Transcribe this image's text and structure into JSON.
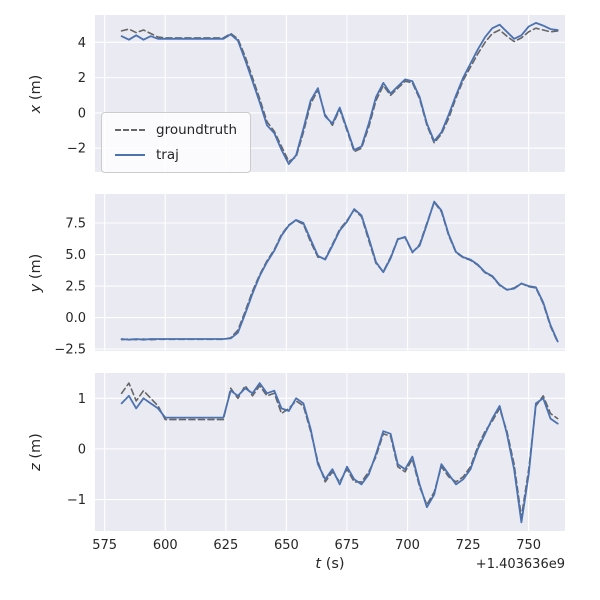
{
  "figure": {
    "xlabel": {
      "var": "t",
      "unit": " (s)"
    },
    "offset_label": "+1.403636e9"
  },
  "colors": {
    "groundtruth": "#666666",
    "traj": "#4c72b0",
    "axes_bg": "#eaeaf2",
    "grid": "#ffffff",
    "text": "#262626"
  },
  "chart_data": [
    {
      "type": "line",
      "ylabel_var": "x",
      "ylabel_unit": " (m)",
      "xlim": [
        571,
        765
      ],
      "ylim": [
        -3.35,
        5.55
      ],
      "xticks": [
        575,
        600,
        625,
        650,
        675,
        700,
        725,
        750
      ],
      "yticks": [
        -2,
        0,
        2,
        4
      ],
      "ytick_labels": [
        "−2",
        "0",
        "2",
        "4"
      ],
      "x": [
        582,
        585,
        588,
        591,
        594,
        597,
        600,
        603,
        606,
        609,
        612,
        615,
        618,
        621,
        624,
        627,
        630,
        633,
        636,
        639,
        642,
        645,
        648,
        651,
        654,
        657,
        660,
        663,
        666,
        669,
        672,
        675,
        678,
        681,
        684,
        687,
        690,
        693,
        696,
        699,
        702,
        705,
        708,
        711,
        714,
        717,
        720,
        723,
        726,
        729,
        732,
        735,
        738,
        741,
        744,
        747,
        750,
        753,
        756,
        759,
        762
      ],
      "series": [
        {
          "name": "groundtruth",
          "dash": "6 3.5",
          "values": [
            4.65,
            4.75,
            4.55,
            4.7,
            4.5,
            4.3,
            4.25,
            4.25,
            4.25,
            4.25,
            4.25,
            4.25,
            4.25,
            4.25,
            4.25,
            4.5,
            4.2,
            3.2,
            2.0,
            0.8,
            -0.5,
            -1.05,
            -1.9,
            -2.75,
            -2.5,
            -1.1,
            0.5,
            1.3,
            -0.1,
            -0.7,
            0.2,
            -1.0,
            -2.2,
            -2.0,
            -0.8,
            0.7,
            1.55,
            1.0,
            1.4,
            1.8,
            1.7,
            0.8,
            -0.7,
            -1.7,
            -1.2,
            -0.3,
            0.85,
            1.85,
            2.6,
            3.35,
            4.0,
            4.5,
            4.7,
            4.35,
            4.05,
            4.25,
            4.6,
            4.8,
            4.7,
            4.6,
            4.65
          ]
        },
        {
          "name": "traj",
          "dash": "",
          "values": [
            4.35,
            4.15,
            4.4,
            4.15,
            4.35,
            4.2,
            4.2,
            4.2,
            4.2,
            4.2,
            4.2,
            4.2,
            4.2,
            4.2,
            4.2,
            4.45,
            4.1,
            3.0,
            1.8,
            0.6,
            -0.7,
            -1.15,
            -2.1,
            -2.9,
            -2.4,
            -0.9,
            0.7,
            1.4,
            -0.2,
            -0.6,
            0.3,
            -0.9,
            -2.1,
            -1.9,
            -0.6,
            0.9,
            1.7,
            1.1,
            1.5,
            1.9,
            1.8,
            0.9,
            -0.6,
            -1.6,
            -1.1,
            -0.1,
            1.0,
            2.0,
            2.8,
            3.6,
            4.3,
            4.8,
            5.0,
            4.6,
            4.2,
            4.4,
            4.9,
            5.1,
            4.95,
            4.75,
            4.7
          ]
        }
      ]
    },
    {
      "type": "line",
      "ylabel_var": "y",
      "ylabel_unit": " (m)",
      "xlim": [
        571,
        765
      ],
      "ylim": [
        -2.65,
        9.8
      ],
      "xticks": [
        575,
        600,
        625,
        650,
        675,
        700,
        725,
        750
      ],
      "yticks": [
        -2.5,
        0.0,
        2.5,
        5.0,
        7.5
      ],
      "ytick_labels": [
        "−2.5",
        "0.0",
        "2.5",
        "5.0",
        "7.5"
      ],
      "x": [
        582,
        585,
        588,
        591,
        594,
        597,
        600,
        603,
        606,
        609,
        612,
        615,
        618,
        621,
        624,
        627,
        630,
        633,
        636,
        639,
        642,
        645,
        648,
        651,
        654,
        657,
        660,
        663,
        666,
        669,
        672,
        675,
        678,
        681,
        684,
        687,
        690,
        693,
        696,
        699,
        702,
        705,
        708,
        711,
        714,
        717,
        720,
        723,
        726,
        729,
        732,
        735,
        738,
        741,
        744,
        747,
        750,
        753,
        756,
        759,
        762
      ],
      "series": [
        {
          "name": "groundtruth",
          "dash": "6 3.5",
          "values": [
            -1.75,
            -1.7,
            -1.75,
            -1.7,
            -1.75,
            -1.72,
            -1.72,
            -1.72,
            -1.72,
            -1.72,
            -1.72,
            -1.72,
            -1.72,
            -1.72,
            -1.72,
            -1.6,
            -1.0,
            0.5,
            2.1,
            3.4,
            4.5,
            5.4,
            6.6,
            7.35,
            7.7,
            7.4,
            6.0,
            4.8,
            4.65,
            5.8,
            7.0,
            7.7,
            8.55,
            8.0,
            6.1,
            4.3,
            3.65,
            4.8,
            6.25,
            6.35,
            5.15,
            5.8,
            7.5,
            9.15,
            8.4,
            6.5,
            5.15,
            4.75,
            4.55,
            4.15,
            3.55,
            3.25,
            2.55,
            2.2,
            2.35,
            2.7,
            2.45,
            2.35,
            1.1,
            -0.7,
            -1.95
          ]
        },
        {
          "name": "traj",
          "dash": "",
          "values": [
            -1.7,
            -1.75,
            -1.7,
            -1.75,
            -1.7,
            -1.7,
            -1.7,
            -1.7,
            -1.7,
            -1.7,
            -1.7,
            -1.7,
            -1.7,
            -1.7,
            -1.7,
            -1.65,
            -1.2,
            0.3,
            1.9,
            3.3,
            4.4,
            5.3,
            6.5,
            7.3,
            7.75,
            7.5,
            6.2,
            4.9,
            4.6,
            5.7,
            6.9,
            7.6,
            8.6,
            8.1,
            6.3,
            4.4,
            3.6,
            4.7,
            6.2,
            6.4,
            5.2,
            5.7,
            7.4,
            9.2,
            8.5,
            6.6,
            5.2,
            4.8,
            4.6,
            4.2,
            3.6,
            3.3,
            2.6,
            2.2,
            2.3,
            2.7,
            2.5,
            2.4,
            1.2,
            -0.6,
            -1.9
          ]
        }
      ]
    },
    {
      "type": "line",
      "ylabel_var": "z",
      "ylabel_unit": " (m)",
      "xlim": [
        571,
        765
      ],
      "ylim": [
        -1.62,
        1.5
      ],
      "xticks": [
        575,
        600,
        625,
        650,
        675,
        700,
        725,
        750
      ],
      "xtick_labels": [
        "575",
        "600",
        "625",
        "650",
        "675",
        "700",
        "725",
        "750"
      ],
      "yticks": [
        -1,
        0,
        1
      ],
      "ytick_labels": [
        "−1",
        "0",
        "1"
      ],
      "x": [
        582,
        585,
        588,
        591,
        594,
        597,
        600,
        603,
        606,
        609,
        612,
        615,
        618,
        621,
        624,
        627,
        630,
        633,
        636,
        639,
        642,
        645,
        648,
        651,
        654,
        657,
        660,
        663,
        666,
        669,
        672,
        675,
        678,
        681,
        684,
        687,
        690,
        693,
        696,
        699,
        702,
        705,
        708,
        711,
        714,
        717,
        720,
        723,
        726,
        729,
        732,
        735,
        738,
        741,
        744,
        747,
        750,
        753,
        756,
        759,
        762
      ],
      "series": [
        {
          "name": "groundtruth",
          "dash": "6 3.5",
          "values": [
            1.1,
            1.3,
            0.95,
            1.15,
            1.0,
            0.85,
            0.58,
            0.58,
            0.58,
            0.58,
            0.58,
            0.58,
            0.58,
            0.58,
            0.58,
            1.2,
            1.0,
            1.25,
            1.05,
            1.25,
            1.05,
            1.1,
            0.7,
            0.8,
            0.95,
            0.85,
            0.35,
            -0.25,
            -0.65,
            -0.45,
            -0.65,
            -0.4,
            -0.65,
            -0.65,
            -0.45,
            -0.15,
            0.3,
            0.25,
            -0.35,
            -0.45,
            -0.2,
            -0.75,
            -1.1,
            -0.85,
            -0.35,
            -0.55,
            -0.65,
            -0.55,
            -0.35,
            0.05,
            0.35,
            0.55,
            0.8,
            0.35,
            -0.3,
            -1.35,
            -0.4,
            0.85,
            1.05,
            0.7,
            0.6
          ]
        },
        {
          "name": "traj",
          "dash": "",
          "values": [
            0.9,
            1.05,
            0.8,
            1.0,
            0.9,
            0.8,
            0.62,
            0.62,
            0.62,
            0.62,
            0.62,
            0.62,
            0.62,
            0.62,
            0.62,
            1.15,
            1.05,
            1.2,
            1.1,
            1.3,
            1.1,
            1.15,
            0.8,
            0.75,
            1.0,
            0.9,
            0.4,
            -0.3,
            -0.6,
            -0.4,
            -0.7,
            -0.35,
            -0.6,
            -0.7,
            -0.5,
            -0.1,
            0.35,
            0.3,
            -0.3,
            -0.4,
            -0.15,
            -0.7,
            -1.15,
            -0.9,
            -0.3,
            -0.5,
            -0.7,
            -0.6,
            -0.4,
            0.0,
            0.3,
            0.6,
            0.85,
            0.3,
            -0.4,
            -1.45,
            -0.5,
            0.9,
            1.0,
            0.6,
            0.5
          ]
        }
      ]
    }
  ]
}
